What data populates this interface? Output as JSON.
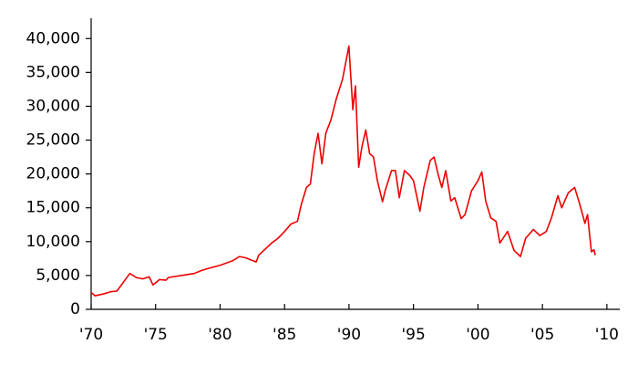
{
  "chart_data": {
    "type": "line",
    "xlim": [
      1970,
      2011
    ],
    "ylim": [
      0,
      43000
    ],
    "xticks": [
      {
        "value": 1970,
        "label": "'70"
      },
      {
        "value": 1975,
        "label": "'75"
      },
      {
        "value": 1980,
        "label": "'80"
      },
      {
        "value": 1985,
        "label": "'85"
      },
      {
        "value": 1990,
        "label": "'90"
      },
      {
        "value": 1995,
        "label": "'95"
      },
      {
        "value": 2000,
        "label": "'00"
      },
      {
        "value": 2005,
        "label": "'05"
      },
      {
        "value": 2010,
        "label": "'10"
      }
    ],
    "yticks": [
      0,
      {
        "value": 5000,
        "label": "5,000"
      },
      {
        "value": 10000,
        "label": "10,000"
      },
      {
        "value": 15000,
        "label": "15,000"
      },
      {
        "value": 20000,
        "label": "20,000"
      },
      {
        "value": 25000,
        "label": "25,000"
      },
      {
        "value": 30000,
        "label": "30,000"
      },
      {
        "value": 35000,
        "label": "35,000"
      },
      {
        "value": 40000,
        "label": "40,000"
      }
    ],
    "grid": false,
    "series": [
      {
        "color": "#ee0000",
        "x": [
          1970,
          1970.3,
          1971,
          1971.5,
          1972,
          1972.5,
          1973,
          1973.5,
          1974,
          1974.5,
          1974.8,
          1975.3,
          1975.8,
          1976,
          1977,
          1978,
          1978.5,
          1979,
          1980,
          1981,
          1981.5,
          1982,
          1982.8,
          1983,
          1984,
          1984.5,
          1985,
          1985.5,
          1986,
          1986.3,
          1986.7,
          1987,
          1987.3,
          1987.6,
          1987.9,
          1988.2,
          1988.6,
          1989,
          1989.5,
          1989.99,
          1990.3,
          1990.5,
          1990.75,
          1991,
          1991.3,
          1991.6,
          1991.9,
          1992.2,
          1992.6,
          1992.8,
          1993.3,
          1993.6,
          1993.9,
          1994.3,
          1994.7,
          1995,
          1995.5,
          1995.8,
          1996.3,
          1996.6,
          1996.9,
          1997.2,
          1997.5,
          1997.9,
          1998.2,
          1998.7,
          1999,
          1999.5,
          2000,
          2000.3,
          2000.6,
          2001,
          2001.4,
          2001.7,
          2002.3,
          2002.8,
          2003.3,
          2003.7,
          2004.3,
          2004.8,
          2005.3,
          2005.7,
          2006.2,
          2006.5,
          2007,
          2007.5,
          2007.9,
          2008.3,
          2008.5,
          2008.8,
          2009,
          2009.1
        ],
        "values": [
          2500,
          2000,
          2300,
          2600,
          2700,
          4000,
          5300,
          4700,
          4500,
          4800,
          3600,
          4400,
          4300,
          4700,
          5000,
          5300,
          5700,
          6000,
          6500,
          7200,
          7800,
          7600,
          7000,
          8000,
          9800,
          10500,
          11500,
          12600,
          13000,
          15500,
          18000,
          18500,
          23000,
          26000,
          21500,
          26000,
          28000,
          31000,
          34000,
          38900,
          29500,
          33000,
          21000,
          24000,
          26500,
          23000,
          22500,
          19000,
          15900,
          17500,
          20500,
          20500,
          16500,
          20500,
          19800,
          19000,
          14500,
          18000,
          22000,
          22500,
          20000,
          18000,
          20500,
          16000,
          16500,
          13400,
          14000,
          17500,
          19000,
          20300,
          16000,
          13500,
          13000,
          9800,
          11500,
          8700,
          7800,
          10500,
          11800,
          10900,
          11500,
          13500,
          16800,
          15000,
          17200,
          18000,
          15500,
          12700,
          14000,
          8500,
          8800,
          8000
        ]
      }
    ]
  }
}
